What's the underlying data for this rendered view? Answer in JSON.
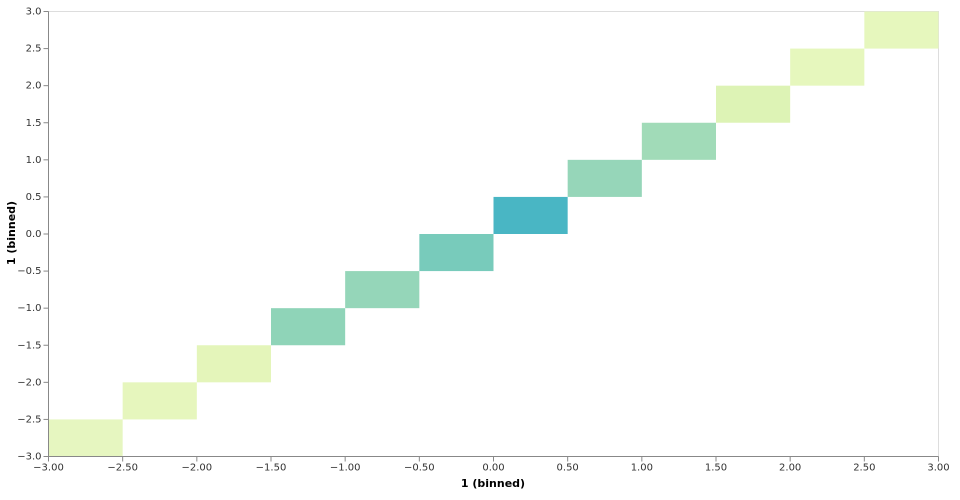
{
  "chart_data": {
    "type": "heatmap",
    "x_label": "1 (binned)",
    "y_label": "1 (binned)",
    "xlim": [
      -3,
      3
    ],
    "ylim": [
      -3,
      3
    ],
    "xticks": [
      {
        "value": -3,
        "label": "−3.00"
      },
      {
        "value": -2.5,
        "label": "−2.50"
      },
      {
        "value": -2,
        "label": "−2.00"
      },
      {
        "value": -1.5,
        "label": "−1.50"
      },
      {
        "value": -1,
        "label": "−1.00"
      },
      {
        "value": -0.5,
        "label": "−0.50"
      },
      {
        "value": 0,
        "label": "0.00"
      },
      {
        "value": 0.5,
        "label": "0.50"
      },
      {
        "value": 1,
        "label": "1.00"
      },
      {
        "value": 1.5,
        "label": "1.50"
      },
      {
        "value": 2,
        "label": "2.00"
      },
      {
        "value": 2.5,
        "label": "2.50"
      },
      {
        "value": 3,
        "label": "3.00"
      }
    ],
    "yticks": [
      {
        "value": -3,
        "label": "−3.0"
      },
      {
        "value": -2.5,
        "label": "−2.5"
      },
      {
        "value": -2,
        "label": "−2.0"
      },
      {
        "value": -1.5,
        "label": "−1.5"
      },
      {
        "value": -1,
        "label": "−1.0"
      },
      {
        "value": -0.5,
        "label": "−0.5"
      },
      {
        "value": 0,
        "label": "0.0"
      },
      {
        "value": 0.5,
        "label": "0.5"
      },
      {
        "value": 1,
        "label": "1.0"
      },
      {
        "value": 1.5,
        "label": "1.5"
      },
      {
        "value": 2,
        "label": "2.0"
      },
      {
        "value": 2.5,
        "label": "2.5"
      },
      {
        "value": 3,
        "label": "3.0"
      }
    ],
    "cells": [
      {
        "x": [
          -3,
          -2.5
        ],
        "y": [
          -3,
          -2.5
        ],
        "color": "#e6f6c0"
      },
      {
        "x": [
          -2.5,
          -2
        ],
        "y": [
          -2.5,
          -2
        ],
        "color": "#e6f6bd"
      },
      {
        "x": [
          -2,
          -1.5
        ],
        "y": [
          -2,
          -1.5
        ],
        "color": "#e4f5ba"
      },
      {
        "x": [
          -1.5,
          -1
        ],
        "y": [
          -1.5,
          -1
        ],
        "color": "#8fd4b8"
      },
      {
        "x": [
          -1,
          -0.5
        ],
        "y": [
          -1,
          -0.5
        ],
        "color": "#95d6b9"
      },
      {
        "x": [
          -0.5,
          0
        ],
        "y": [
          -0.5,
          0
        ],
        "color": "#78cbbb"
      },
      {
        "x": [
          0,
          0.5
        ],
        "y": [
          0,
          0.5
        ],
        "color": "#49b6c4"
      },
      {
        "x": [
          0.5,
          1
        ],
        "y": [
          0.5,
          1
        ],
        "color": "#96d6b9"
      },
      {
        "x": [
          1,
          1.5
        ],
        "y": [
          1,
          1.5
        ],
        "color": "#a1dbb8"
      },
      {
        "x": [
          1.5,
          2
        ],
        "y": [
          1.5,
          2
        ],
        "color": "#ddf3b5"
      },
      {
        "x": [
          2,
          2.5
        ],
        "y": [
          2,
          2.5
        ],
        "color": "#e6f7bd"
      },
      {
        "x": [
          2.5,
          3
        ],
        "y": [
          2.5,
          3
        ],
        "color": "#e6f7bd"
      }
    ]
  }
}
